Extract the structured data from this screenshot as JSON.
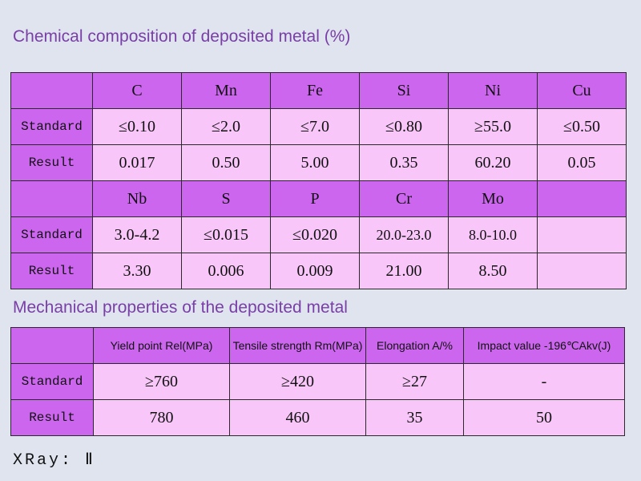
{
  "chemical": {
    "title": "Chemical composition of deposited metal (%)",
    "block1": {
      "headers": [
        "C",
        "Mn",
        "Fe",
        "Si",
        "Ni",
        "Cu"
      ],
      "standard_label": "Standard",
      "standard": [
        "≤0.10",
        "≤2.0",
        "≤7.0",
        "≤0.80",
        "≥55.0",
        "≤0.50"
      ],
      "result_label": "Result",
      "result": [
        "0.017",
        "0.50",
        "5.00",
        "0.35",
        "60.20",
        "0.05"
      ]
    },
    "block2": {
      "headers": [
        "Nb",
        "S",
        "P",
        "Cr",
        "Mo",
        ""
      ],
      "standard_label": "Standard",
      "standard": [
        "3.0-4.2",
        "≤0.015",
        "≤0.020",
        "20.0-23.0",
        "8.0-10.0",
        ""
      ],
      "result_label": "Result",
      "result": [
        "3.30",
        "0.006",
        "0.009",
        "21.00",
        "8.50",
        ""
      ]
    }
  },
  "mechanical": {
    "title": "Mechanical properties of the deposited metal",
    "headers": [
      "Yield point Rel(MPa)",
      "Tensile strength Rm(MPa)",
      "Elongation A/%",
      "Impact value -196℃Akv(J)"
    ],
    "standard_label": "Standard",
    "standard": [
      "≥760",
      "≥420",
      "≥27",
      "-"
    ],
    "result_label": "Result",
    "result": [
      "780",
      "460",
      "35",
      "50"
    ]
  },
  "xray": "XRay: Ⅱ"
}
